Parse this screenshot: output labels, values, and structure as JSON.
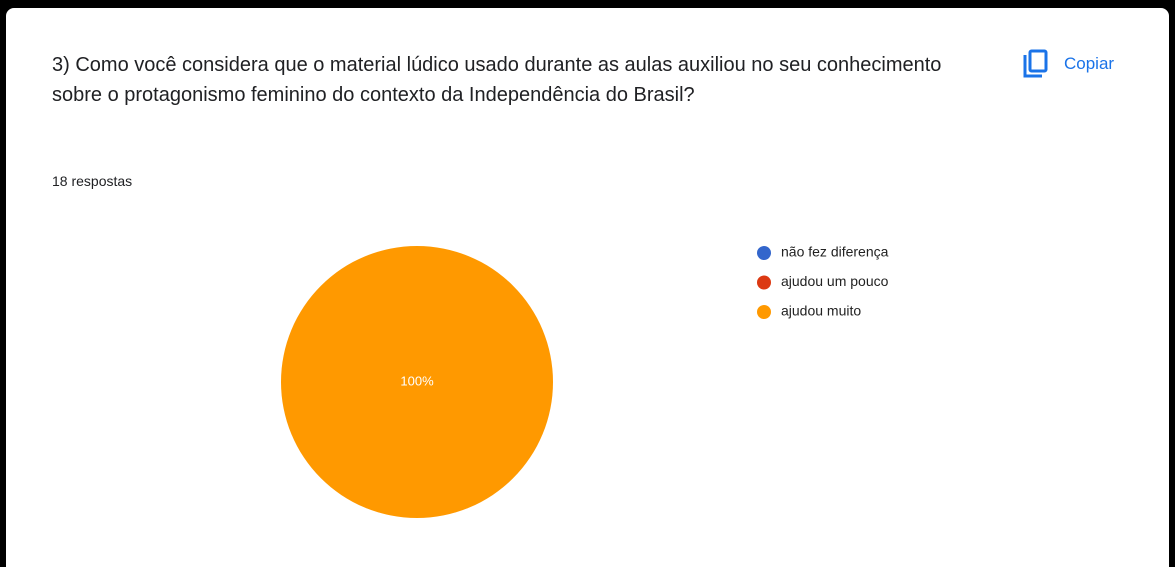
{
  "chart_data": {
    "type": "pie",
    "title": "3) Como você considera que o material lúdico usado durante as aulas auxiliou no seu conhecimento sobre o protagonismo feminino do contexto da Independência do Brasil?",
    "subtitle": "18 respostas",
    "categories": [
      "não fez diferença",
      "ajudou um pouco",
      "ajudou muito"
    ],
    "values": [
      0,
      0,
      100
    ],
    "value_labels": [
      null,
      null,
      "100%"
    ],
    "colors": [
      "#3366cc",
      "#dc3912",
      "#ff9900"
    ],
    "legend": "right"
  },
  "ui": {
    "copy_button": "Copiar"
  }
}
